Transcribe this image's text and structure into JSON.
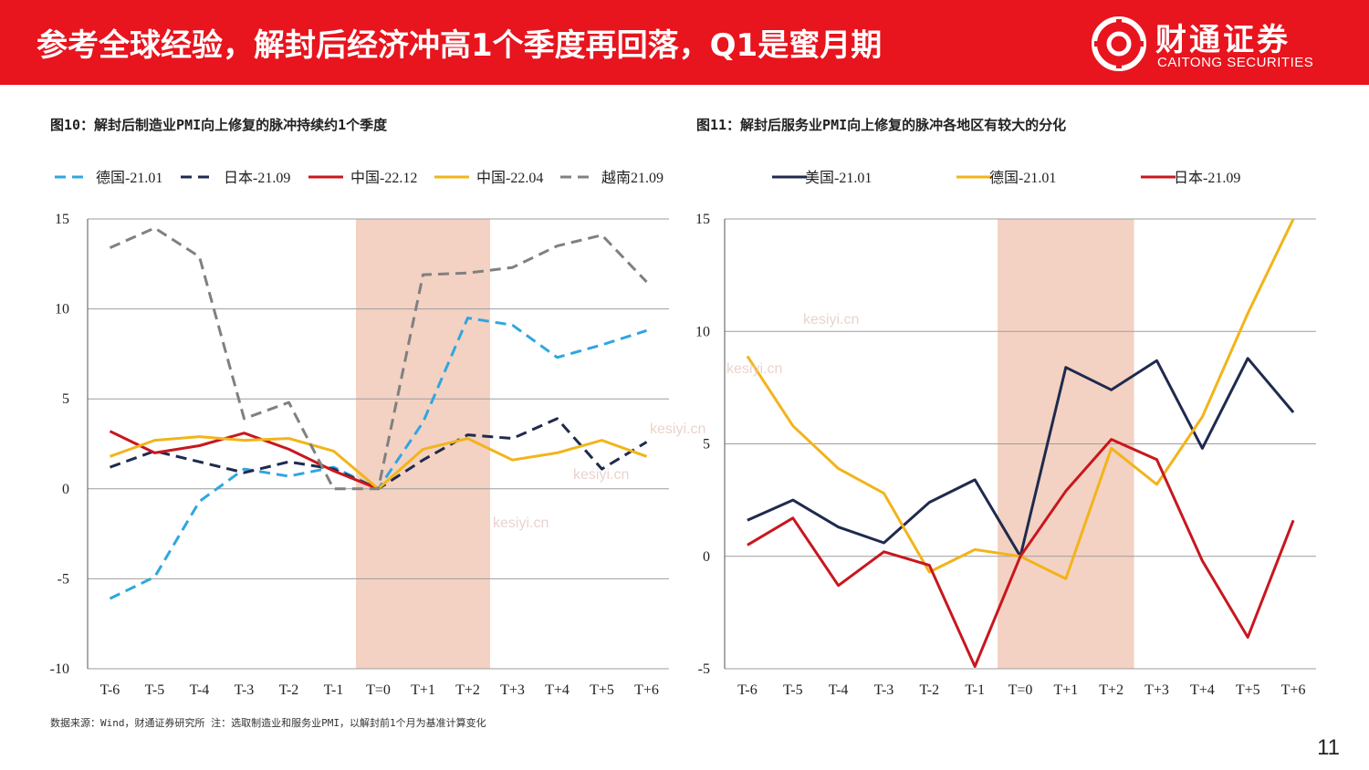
{
  "header": {
    "title": "参考全球经验，解封后经济冲高1个季度再回落，Q1是蜜月期",
    "logo_cn": "财通证券",
    "logo_en": "CAITONG SECURITIES",
    "bg_color": "#e8141e"
  },
  "watermark": "kesiyi.cn",
  "footer": {
    "source": "数据来源：Wind，财通证券研究所    注：选取制造业和服务业PMI，以解封前1个月为基准计算变化",
    "page_number": "11"
  },
  "chart_data": [
    {
      "type": "line",
      "title": "图10：解封后制造业PMI向上修复的脉冲持续约1个季度",
      "categories": [
        "T-6",
        "T-5",
        "T-4",
        "T-3",
        "T-2",
        "T-1",
        "T=0",
        "T+1",
        "T+2",
        "T+3",
        "T+4",
        "T+5",
        "T+6"
      ],
      "ylim": [
        -10,
        15
      ],
      "yticks": [
        "15",
        "10",
        "5",
        "0",
        "-5",
        "-10"
      ],
      "shaded_range": [
        "T=0",
        "T+2"
      ],
      "grid": true,
      "legend_position": "top",
      "series": [
        {
          "name": "德国-21.01",
          "color": "#2fa6e0",
          "dash": true,
          "values": [
            -6.1,
            -4.9,
            -0.7,
            1.1,
            0.7,
            1.2,
            0,
            3.7,
            9.5,
            9.1,
            7.3,
            8.0,
            8.8
          ]
        },
        {
          "name": "日本-21.09",
          "color": "#1f2a4d",
          "dash": true,
          "values": [
            1.2,
            2.1,
            1.5,
            0.9,
            1.5,
            1.1,
            0,
            1.6,
            3.0,
            2.8,
            3.9,
            1.1,
            2.6
          ]
        },
        {
          "name": "中国-22.12",
          "color": "#c8171e",
          "dash": false,
          "values": [
            3.2,
            2.0,
            2.4,
            3.1,
            2.2,
            1.0,
            0,
            null,
            null,
            null,
            null,
            null,
            null
          ]
        },
        {
          "name": "中国-22.04",
          "color": "#f2b41a",
          "dash": false,
          "values": [
            1.8,
            2.7,
            2.9,
            2.7,
            2.8,
            2.1,
            0,
            2.2,
            2.8,
            1.6,
            2.0,
            2.7,
            1.8
          ]
        },
        {
          "name": "越南21.09",
          "color": "#808080",
          "dash": true,
          "values": [
            13.4,
            14.5,
            12.9,
            3.9,
            4.8,
            0,
            0,
            11.9,
            12.0,
            12.3,
            13.5,
            14.1,
            11.5
          ]
        }
      ]
    },
    {
      "type": "line",
      "title": "图11：解封后服务业PMI向上修复的脉冲各地区有较大的分化",
      "categories": [
        "T-6",
        "T-5",
        "T-4",
        "T-3",
        "T-2",
        "T-1",
        "T=0",
        "T+1",
        "T+2",
        "T+3",
        "T+4",
        "T+5",
        "T+6"
      ],
      "ylim": [
        -5,
        15
      ],
      "yticks": [
        "15",
        "10",
        "5",
        "0",
        "-5"
      ],
      "shaded_range": [
        "T=0",
        "T+2"
      ],
      "grid": true,
      "legend_position": "top",
      "series": [
        {
          "name": "美国-21.01",
          "color": "#1f2a4d",
          "dash": false,
          "values": [
            1.6,
            2.5,
            1.3,
            0.6,
            2.4,
            3.4,
            0,
            8.4,
            7.4,
            8.7,
            4.8,
            8.8,
            6.4
          ]
        },
        {
          "name": "德国-21.01",
          "color": "#f2b41a",
          "dash": false,
          "values": [
            8.9,
            5.8,
            3.9,
            2.8,
            -0.7,
            0.3,
            0,
            -1.0,
            4.8,
            3.2,
            6.2,
            10.8,
            15.0
          ]
        },
        {
          "name": "日本-21.09",
          "color": "#c8171e",
          "dash": false,
          "values": [
            0.5,
            1.7,
            -1.3,
            0.2,
            -0.4,
            -4.9,
            0,
            2.9,
            5.2,
            4.3,
            -0.2,
            -3.6,
            1.6
          ]
        }
      ]
    }
  ]
}
